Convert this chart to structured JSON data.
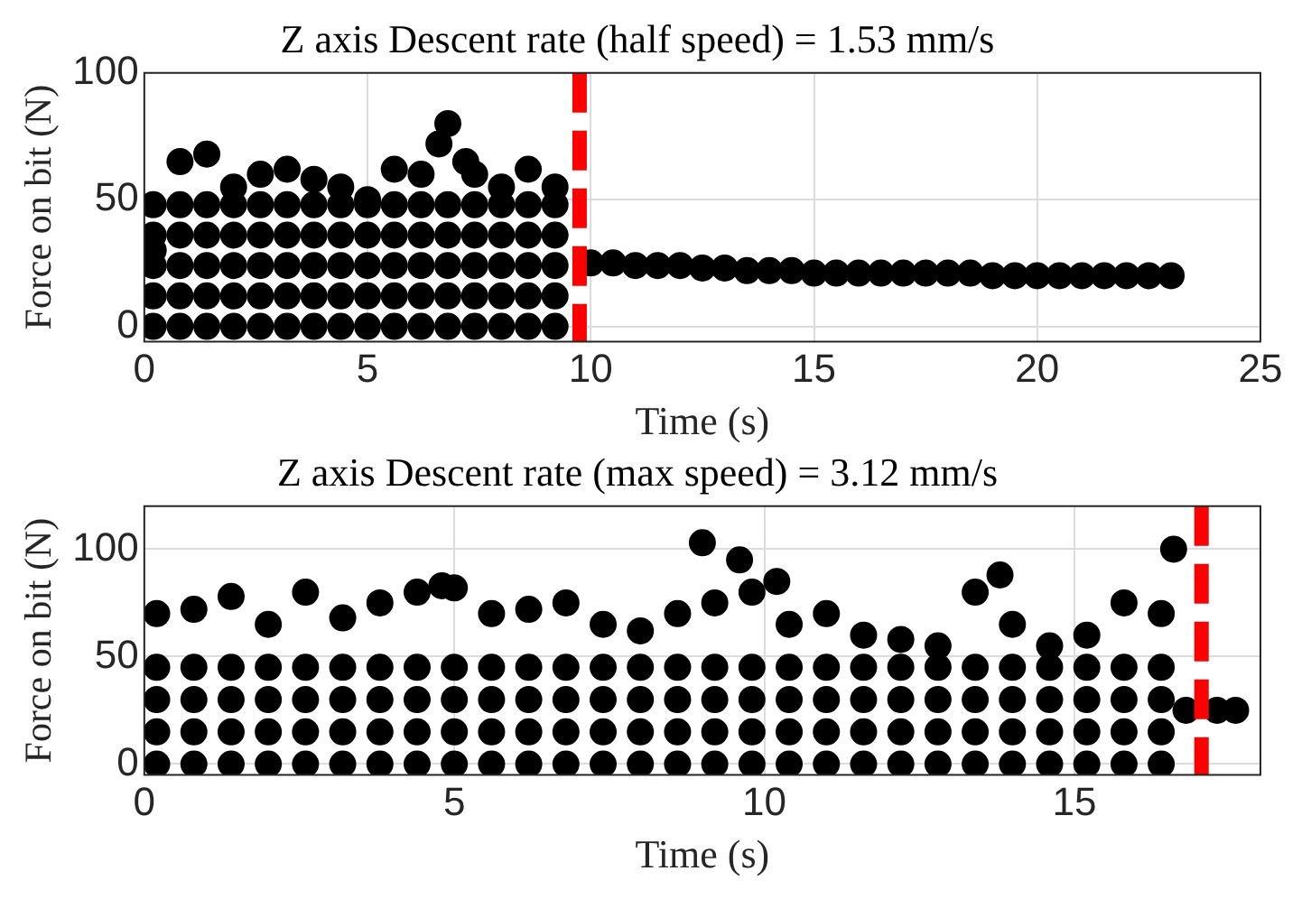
{
  "chart_data": [
    {
      "type": "scatter",
      "title": "Z axis Descent rate (half speed) = 1.53 mm/s",
      "xlabel": "Time (s)",
      "ylabel": "Force on bit (N)",
      "xlim": [
        0,
        25
      ],
      "xticks": [
        0,
        5,
        10,
        15,
        20,
        25
      ],
      "ylim": [
        -6,
        100
      ],
      "yticks": [
        0,
        50,
        100
      ],
      "grid": true,
      "legend": false,
      "marker": "circle",
      "ref_lines": [
        {
          "axis": "x",
          "value": 9.75,
          "color": "#ff0000",
          "line_style": "dashed"
        }
      ],
      "series": [
        {
          "color": "#000000",
          "x": [
            0.2,
            0.8,
            1.4,
            2.0,
            2.6,
            3.2,
            3.8,
            4.4,
            5.0,
            5.6,
            6.2,
            6.8,
            7.4,
            8.0,
            8.6,
            9.2,
            0.2,
            0.8,
            1.4,
            2.0,
            2.6,
            3.2,
            3.8,
            4.4,
            5.0,
            5.6,
            6.2,
            6.8,
            7.4,
            8.0,
            8.6,
            9.2,
            0.2,
            0.8,
            1.4,
            2.0,
            2.6,
            3.2,
            3.8,
            4.4,
            5.0,
            5.6,
            6.2,
            6.8,
            7.4,
            8.0,
            8.6,
            9.2,
            0.2,
            0.8,
            1.4,
            2.0,
            2.6,
            3.2,
            3.8,
            4.4,
            5.0,
            5.6,
            6.2,
            6.8,
            7.4,
            8.0,
            8.6,
            9.2,
            0.2,
            0.8,
            1.4,
            2.0,
            2.6,
            3.2,
            3.8,
            4.4,
            5.0,
            5.6,
            6.2,
            6.8,
            7.4,
            8.0,
            8.6,
            9.2,
            0.2,
            0.8,
            1.4,
            2.0,
            2.6,
            3.2,
            3.8,
            4.4,
            5.0,
            5.6,
            6.2,
            6.8,
            7.4,
            8.0,
            8.6,
            9.2,
            6.6,
            7.2,
            10,
            10.5,
            11,
            11.5,
            12,
            12.5,
            13,
            13.5,
            14,
            14.5,
            15,
            15.5,
            16,
            16.5,
            17,
            17.5,
            18,
            18.5,
            19,
            19.5,
            20,
            20.5,
            21,
            21.5,
            22,
            22.5,
            23
          ],
          "values": [
            0,
            0,
            0,
            0,
            0,
            0,
            0,
            0,
            0,
            0,
            0,
            0,
            0,
            0,
            0,
            0,
            12,
            12,
            12,
            12,
            12,
            12,
            12,
            12,
            12,
            12,
            12,
            12,
            12,
            12,
            12,
            12,
            24,
            24,
            24,
            24,
            24,
            24,
            24,
            24,
            24,
            24,
            24,
            24,
            24,
            24,
            24,
            24,
            36,
            36,
            36,
            36,
            36,
            36,
            36,
            36,
            36,
            36,
            36,
            36,
            36,
            36,
            36,
            36,
            48,
            48,
            48,
            48,
            48,
            48,
            48,
            48,
            48,
            48,
            48,
            48,
            48,
            48,
            48,
            48,
            30,
            65,
            68,
            55,
            60,
            62,
            58,
            55,
            50,
            62,
            60,
            80,
            60,
            55,
            62,
            55,
            72,
            65,
            25,
            25,
            24,
            24,
            24,
            23,
            23,
            22,
            22,
            22,
            21,
            21,
            21,
            21,
            21,
            21,
            21,
            21,
            20,
            20,
            20,
            20,
            20,
            20,
            20,
            20,
            20
          ]
        }
      ]
    },
    {
      "type": "scatter",
      "title": "Z axis Descent rate (max speed) = 3.12 mm/s",
      "xlabel": "Time (s)",
      "ylabel": "Force on bit (N)",
      "xlim": [
        0,
        18
      ],
      "xticks": [
        0,
        5,
        10,
        15
      ],
      "ylim": [
        -5,
        120
      ],
      "yticks": [
        0,
        50,
        100
      ],
      "grid": true,
      "legend": false,
      "marker": "circle",
      "ref_lines": [
        {
          "axis": "x",
          "value": 17.05,
          "color": "#ff0000",
          "line_style": "dashed"
        }
      ],
      "series": [
        {
          "color": "#000000",
          "x": [
            0.2,
            0.8,
            1.4,
            2.0,
            2.6,
            3.2,
            3.8,
            4.4,
            5.0,
            5.6,
            6.2,
            6.8,
            7.4,
            8.0,
            8.6,
            9.2,
            9.8,
            10.4,
            11.0,
            11.6,
            12.2,
            12.8,
            13.4,
            14.0,
            14.6,
            15.2,
            15.8,
            16.4,
            0.2,
            0.8,
            1.4,
            2.0,
            2.6,
            3.2,
            3.8,
            4.4,
            5.0,
            5.6,
            6.2,
            6.8,
            7.4,
            8.0,
            8.6,
            9.2,
            9.8,
            10.4,
            11.0,
            11.6,
            12.2,
            12.8,
            13.4,
            14.0,
            14.6,
            15.2,
            15.8,
            16.4,
            0.2,
            0.8,
            1.4,
            2.0,
            2.6,
            3.2,
            3.8,
            4.4,
            5.0,
            5.6,
            6.2,
            6.8,
            7.4,
            8.0,
            8.6,
            9.2,
            9.8,
            10.4,
            11.0,
            11.6,
            12.2,
            12.8,
            13.4,
            14.0,
            14.6,
            15.2,
            15.8,
            16.4,
            0.2,
            0.8,
            1.4,
            2.0,
            2.6,
            3.2,
            3.8,
            4.4,
            5.0,
            5.6,
            6.2,
            6.8,
            7.4,
            8.0,
            8.6,
            9.2,
            9.8,
            10.4,
            11.0,
            11.6,
            12.2,
            12.8,
            13.4,
            14.0,
            14.6,
            15.2,
            15.8,
            16.4,
            0.2,
            0.8,
            1.4,
            2.0,
            2.6,
            3.2,
            3.8,
            4.4,
            5.0,
            5.6,
            6.2,
            6.8,
            7.4,
            8.0,
            8.6,
            9.2,
            9.8,
            10.4,
            11.0,
            11.6,
            12.2,
            12.8,
            13.4,
            14.0,
            14.6,
            15.2,
            15.8,
            16.4,
            9.0,
            9.6,
            10.2,
            13.8,
            16.6,
            4.8,
            16.8,
            17.3,
            17.6
          ],
          "values": [
            0,
            0,
            0,
            0,
            0,
            0,
            0,
            0,
            0,
            0,
            0,
            0,
            0,
            0,
            0,
            0,
            0,
            0,
            0,
            0,
            0,
            0,
            0,
            0,
            0,
            0,
            0,
            0,
            15,
            15,
            15,
            15,
            15,
            15,
            15,
            15,
            15,
            15,
            15,
            15,
            15,
            15,
            15,
            15,
            15,
            15,
            15,
            15,
            15,
            15,
            15,
            15,
            15,
            15,
            15,
            15,
            30,
            30,
            30,
            30,
            30,
            30,
            30,
            30,
            30,
            30,
            30,
            30,
            30,
            30,
            30,
            30,
            30,
            30,
            30,
            30,
            30,
            30,
            30,
            30,
            30,
            30,
            30,
            30,
            45,
            45,
            45,
            45,
            45,
            45,
            45,
            45,
            45,
            45,
            45,
            45,
            45,
            45,
            45,
            45,
            45,
            45,
            45,
            45,
            45,
            45,
            45,
            45,
            45,
            45,
            45,
            45,
            70,
            72,
            78,
            65,
            80,
            68,
            75,
            80,
            82,
            70,
            72,
            75,
            65,
            62,
            70,
            75,
            80,
            65,
            70,
            60,
            58,
            55,
            80,
            65,
            55,
            60,
            75,
            70,
            103,
            95,
            85,
            88,
            100,
            83,
            25,
            25,
            25
          ]
        }
      ]
    }
  ]
}
